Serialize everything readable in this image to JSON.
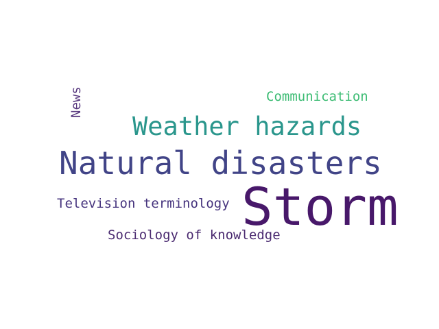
{
  "words": {
    "storm": {
      "text": "Storm",
      "color": "#48186a"
    },
    "natural": {
      "text": "Natural disasters",
      "color": "#414487"
    },
    "weather": {
      "text": "Weather hazards",
      "color": "#2a968c"
    },
    "communication": {
      "text": "Communication",
      "color": "#3dbc74"
    },
    "news": {
      "text": "News",
      "color": "#5a3a80"
    },
    "television": {
      "text": "Television terminology",
      "color": "#45337d"
    },
    "sociology": {
      "text": "Sociology of knowledge",
      "color": "#4a2a70"
    }
  }
}
